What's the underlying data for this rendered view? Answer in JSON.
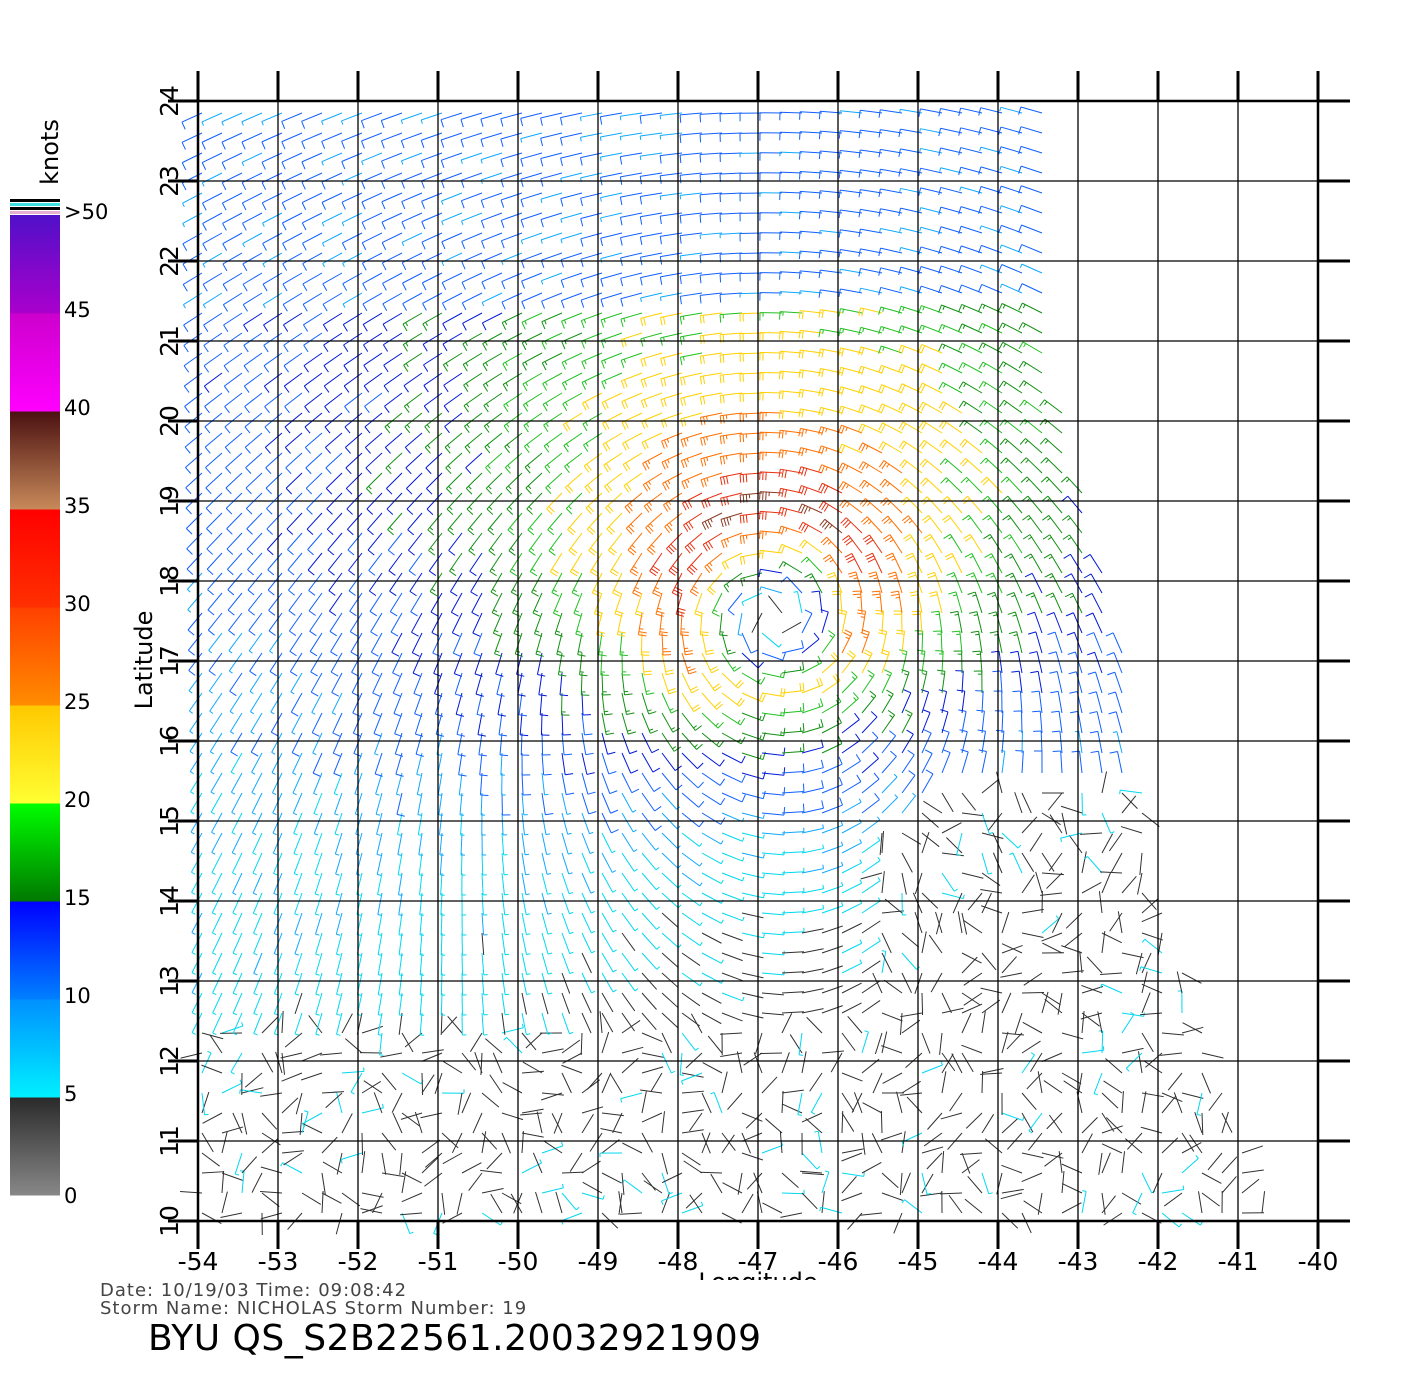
{
  "chart_data": {
    "type": "wind-barb map",
    "xlabel": "Longitude",
    "ylabel": "Latitude",
    "xlim": [
      -54,
      -40
    ],
    "ylim": [
      10,
      24
    ],
    "x_ticks": [
      "-54",
      "-53",
      "-52",
      "-51",
      "-50",
      "-49",
      "-48",
      "-47",
      "-46",
      "-45",
      "-44",
      "-43",
      "-42",
      "-41",
      "-40"
    ],
    "y_ticks": [
      "10",
      "11",
      "12",
      "13",
      "14",
      "15",
      "16",
      "17",
      "18",
      "19",
      "20",
      "21",
      "22",
      "23",
      "24"
    ],
    "grid": true,
    "storm_center": {
      "lon": -46.8,
      "lat": 17.8
    },
    "colorbar": {
      "unit_label": "knots",
      "tick_labels": [
        "0",
        "5",
        "10",
        "15",
        "20",
        "25",
        "30",
        "35",
        "40",
        "45",
        ">50"
      ],
      "bands": [
        {
          "from": 0,
          "to": 5,
          "colors": [
            "#888888",
            "#2a2a2a"
          ]
        },
        {
          "from": 5,
          "to": 10,
          "colors": [
            "#00f0ff",
            "#0090ff"
          ]
        },
        {
          "from": 10,
          "to": 15,
          "colors": [
            "#0080ff",
            "#0000ff"
          ]
        },
        {
          "from": 15,
          "to": 20,
          "colors": [
            "#007800",
            "#00ff00"
          ]
        },
        {
          "from": 20,
          "to": 25,
          "colors": [
            "#ffff33",
            "#ffc800"
          ]
        },
        {
          "from": 25,
          "to": 30,
          "colors": [
            "#ff8c00",
            "#ff4000"
          ]
        },
        {
          "from": 30,
          "to": 35,
          "colors": [
            "#ff3000",
            "#ff0000"
          ]
        },
        {
          "from": 35,
          "to": 40,
          "colors": [
            "#c88a5a",
            "#4a1010"
          ]
        },
        {
          "from": 40,
          "to": 45,
          "colors": [
            "#ff00ff",
            "#cc00cc"
          ]
        },
        {
          "from": 45,
          "to": 50,
          "colors": [
            "#aa00cc",
            "#5010c8"
          ]
        }
      ]
    }
  },
  "footer": {
    "date_line": "Date: 10/19/03   Time: 09:08:42",
    "storm_line": "Storm  Name: NICHOLAS   Storm  Number: 19",
    "title": "BYU  QS_S2B22561.20032921909"
  }
}
